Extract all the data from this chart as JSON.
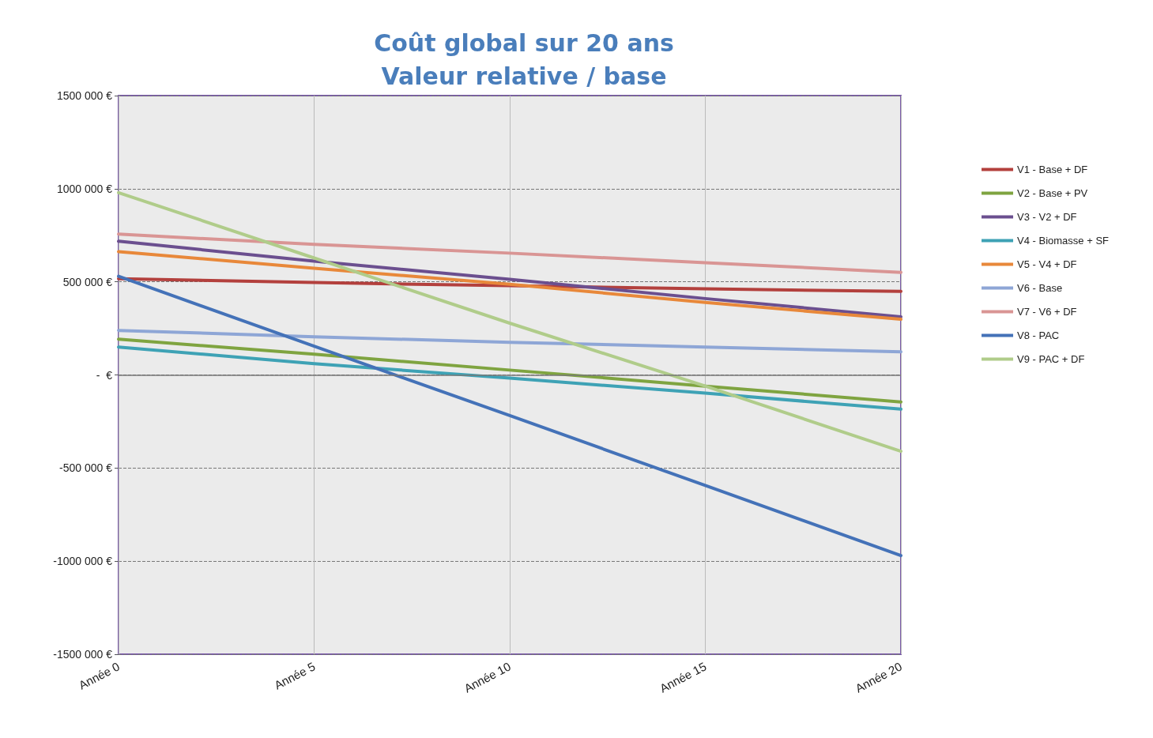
{
  "chart_data": {
    "type": "line",
    "title": "Coût global sur 20 ans\nValeur relative / base",
    "categories": [
      "Année 0",
      "Année 5",
      "Année 10",
      "Année 15",
      "Année 20"
    ],
    "ylim": [
      -1500000,
      1500000
    ],
    "yticks": [
      {
        "value": -1500000,
        "label": "-1500 000 €"
      },
      {
        "value": -1000000,
        "label": "-1000 000 €"
      },
      {
        "value": -500000,
        "label": "-500 000 €"
      },
      {
        "value": 0,
        "label": "-  €"
      },
      {
        "value": 500000,
        "label": "500 000 €"
      },
      {
        "value": 1000000,
        "label": "1000 000 €"
      },
      {
        "value": 1500000,
        "label": "1500 000 €"
      }
    ],
    "grid": true,
    "legend": "right",
    "marker": "none",
    "line_style": "solid",
    "series": [
      {
        "name": "V1 - Base + DF",
        "color": "#b3403d",
        "values": [
          517000,
          496000,
          479000,
          462000,
          449000
        ]
      },
      {
        "name": "V2 - Base + PV",
        "color": "#7fa440",
        "values": [
          192000,
          111000,
          26000,
          -60000,
          -145000
        ]
      },
      {
        "name": "V3 - V2 + DF",
        "color": "#6b4f8f",
        "values": [
          718000,
          611000,
          513000,
          410000,
          312000
        ]
      },
      {
        "name": "V4 - Biomasse + SF",
        "color": "#3ea2b5",
        "values": [
          150000,
          60000,
          -17000,
          -98000,
          -184000
        ]
      },
      {
        "name": "V5 - V4 + DF",
        "color": "#e8883a",
        "values": [
          662000,
          573000,
          487000,
          389000,
          299000
        ]
      },
      {
        "name": "V6 - Base",
        "color": "#8ea6d6",
        "values": [
          239000,
          205000,
          175000,
          150000,
          124000
        ]
      },
      {
        "name": "V7 - V6 + DF",
        "color": "#d99594",
        "values": [
          756000,
          701000,
          654000,
          603000,
          551000
        ]
      },
      {
        "name": "V8 - PAC",
        "color": "#4472b8",
        "values": [
          530000,
          154000,
          -218000,
          -594000,
          -970000
        ]
      },
      {
        "name": "V9 - PAC + DF",
        "color": "#b0cc8a",
        "values": [
          979000,
          628000,
          278000,
          -60000,
          -410000
        ]
      }
    ]
  }
}
